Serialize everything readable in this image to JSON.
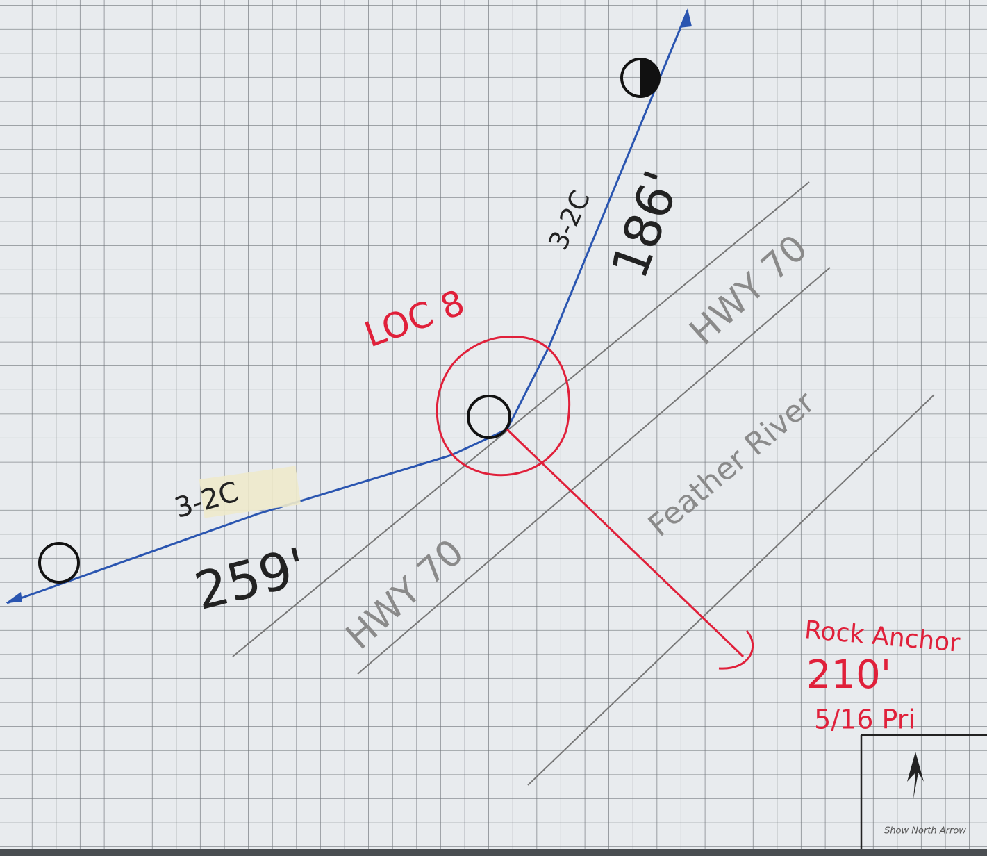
{
  "pole_label": "LOC 8",
  "spans": [
    {
      "conductor": "3-2C",
      "length": "186'"
    },
    {
      "conductor": "3-2C",
      "length": "259'"
    }
  ],
  "roads": [
    "HWY 70",
    "HWY 70"
  ],
  "river": "Feather River",
  "anchor": {
    "type": "Rock Anchor",
    "length": "210'",
    "guy": "5/16 Pri"
  },
  "north_arrow_box": "Show North Arrow"
}
